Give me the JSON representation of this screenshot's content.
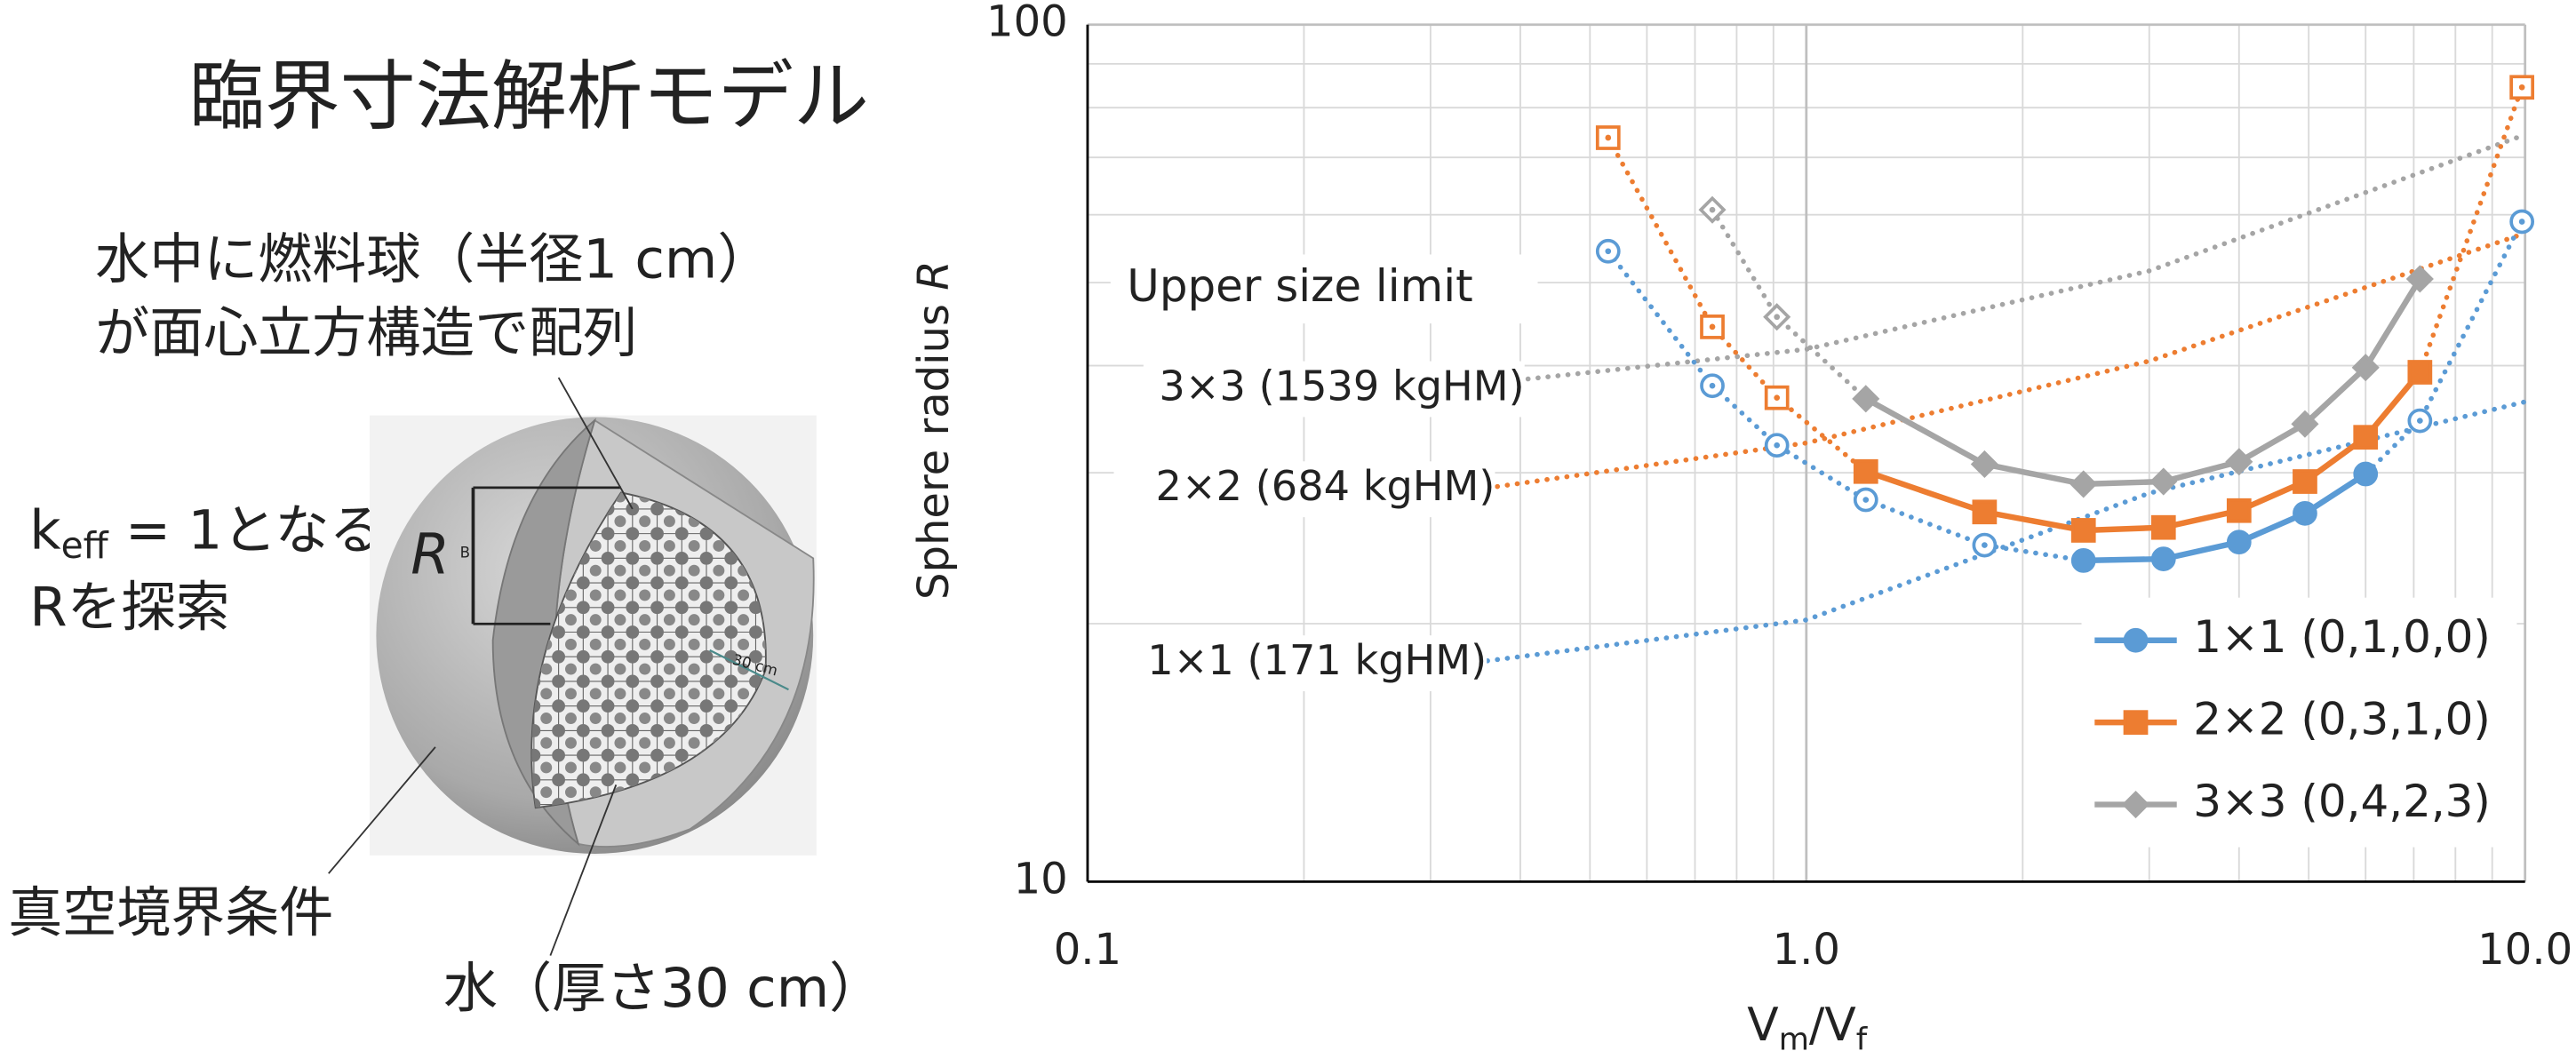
{
  "diagram": {
    "title": "臨界寸法解析モデル",
    "note_line1": "水中に燃料球（半径1 cm）",
    "note_line2": "が面心立方構造で配列",
    "keff": [
      "k",
      "eff",
      " = 1となる"
    ],
    "search": "Rを探索",
    "boundary": "真空境界条件",
    "water": "水（厚さ30 cm）",
    "r_symbol": "R",
    "r_sub": "B",
    "thickness": "30 cm"
  },
  "chart_data": {
    "type": "line",
    "x_label": [
      "V",
      "m",
      "/V",
      "f"
    ],
    "y_label": [
      "Sphere radius ",
      "R"
    ],
    "x_log": true,
    "y_log": true,
    "grid": true,
    "minor_grid": true,
    "xlim": [
      0.1,
      10
    ],
    "xticks": [
      0.1,
      {
        "value": 1,
        "label": "1.0"
      },
      {
        "value": 10,
        "label": "10.0"
      }
    ],
    "ylim": [
      10,
      100
    ],
    "yticks": [
      10,
      100
    ],
    "legend": "lower right",
    "series": [
      {
        "name": "1×1 (0,1,0,0)",
        "color": "#5b9bd5",
        "marker": "circle",
        "x": [
          0.53,
          0.74,
          0.91,
          1.21,
          1.77,
          2.43,
          3.14,
          4.0,
          4.94,
          6.0,
          7.14,
          9.9
        ],
        "values": [
          54.4,
          37.9,
          32.3,
          27.9,
          24.7,
          23.7,
          23.8,
          24.9,
          26.9,
          29.9,
          34.5,
          58.9
        ],
        "filled": [
          false,
          false,
          false,
          false,
          false,
          true,
          true,
          true,
          true,
          true,
          false,
          false
        ]
      },
      {
        "name": "2×2 (0,3,1,0)",
        "color": "#ed7d31",
        "marker": "square",
        "x": [
          0.53,
          0.74,
          0.91,
          1.21,
          1.77,
          2.43,
          3.14,
          4.0,
          4.94,
          6.0,
          7.14,
          9.9
        ],
        "values": [
          73.8,
          44.4,
          36.7,
          30.1,
          27.0,
          25.7,
          25.9,
          27.1,
          29.3,
          33.0,
          39.3,
          84.5
        ],
        "filled": [
          false,
          false,
          false,
          true,
          true,
          true,
          true,
          true,
          true,
          true,
          true,
          false
        ]
      },
      {
        "name": "3×3 (0,4,2,3)",
        "color": "#a5a5a5",
        "marker": "diamond",
        "x": [
          0.74,
          0.91,
          1.21,
          1.77,
          2.43,
          3.14,
          4.0,
          4.94,
          6.0,
          7.14
        ],
        "values": [
          60.8,
          45.6,
          36.6,
          30.7,
          29.1,
          29.3,
          30.9,
          34.2,
          39.8,
          50.5
        ],
        "filled": [
          false,
          false,
          true,
          true,
          true,
          true,
          true,
          true,
          true,
          true
        ]
      }
    ],
    "limit_title": "Upper size limit",
    "limit_lines": [
      {
        "label": "1×1 (171 kgHM)",
        "color": "#5b9bd5",
        "x": [
          0.36,
          1.0,
          3.0,
          10
        ],
        "values": [
          18.1,
          20.2,
          28.4,
          36.3
        ]
      },
      {
        "label": "2×2 (684 kgHM)",
        "color": "#ed7d31",
        "x": [
          0.36,
          1.0,
          3.0,
          10
        ],
        "values": [
          28.8,
          32.5,
          40.5,
          57.1
        ]
      },
      {
        "label": "3×3 (1539 kgHM)",
        "color": "#a5a5a5",
        "x": [
          0.41,
          1.0,
          3.0,
          10
        ],
        "values": [
          38.6,
          41.8,
          51.6,
          74.4
        ]
      }
    ]
  }
}
